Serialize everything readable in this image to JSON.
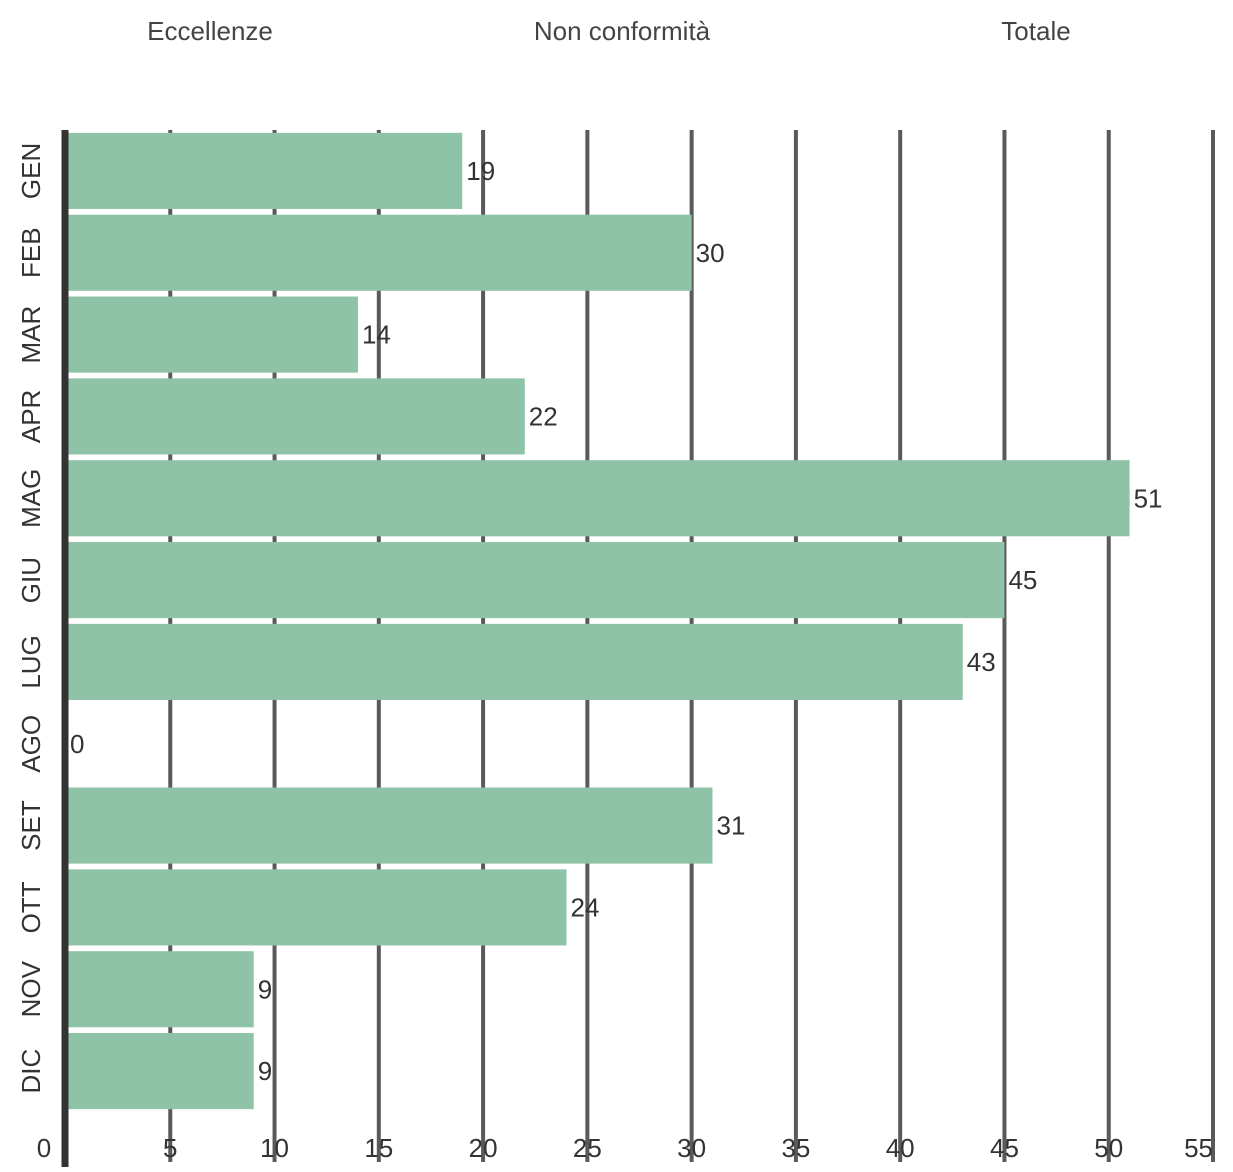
{
  "chart_data": {
    "type": "bar",
    "orientation": "horizontal",
    "title": "",
    "xlabel": "",
    "ylabel": "",
    "xlim": [
      0,
      55
    ],
    "x_ticks": [
      0,
      5,
      10,
      15,
      20,
      25,
      30,
      35,
      40,
      45,
      50,
      55
    ],
    "grid": "vertical",
    "legend_position": "top",
    "legend": [
      {
        "label": "Eccellenze"
      },
      {
        "label": "Non conformità"
      },
      {
        "label": "Totale"
      }
    ],
    "categories": [
      "GEN",
      "FEB",
      "MAR",
      "APR",
      "MAG",
      "GIU",
      "LUG",
      "AGO",
      "SET",
      "OTT",
      "NOV",
      "DIC"
    ],
    "series": [
      {
        "values": [
          19,
          30,
          14,
          22,
          51,
          45,
          43,
          0,
          31,
          24,
          9,
          9
        ],
        "color": "#8fc3a7"
      }
    ],
    "colors": {
      "bar": "#8fc3a7",
      "grid": "#5a5a5a",
      "axis": "#333333",
      "text": "#333333",
      "legend_text": "#444444"
    }
  }
}
